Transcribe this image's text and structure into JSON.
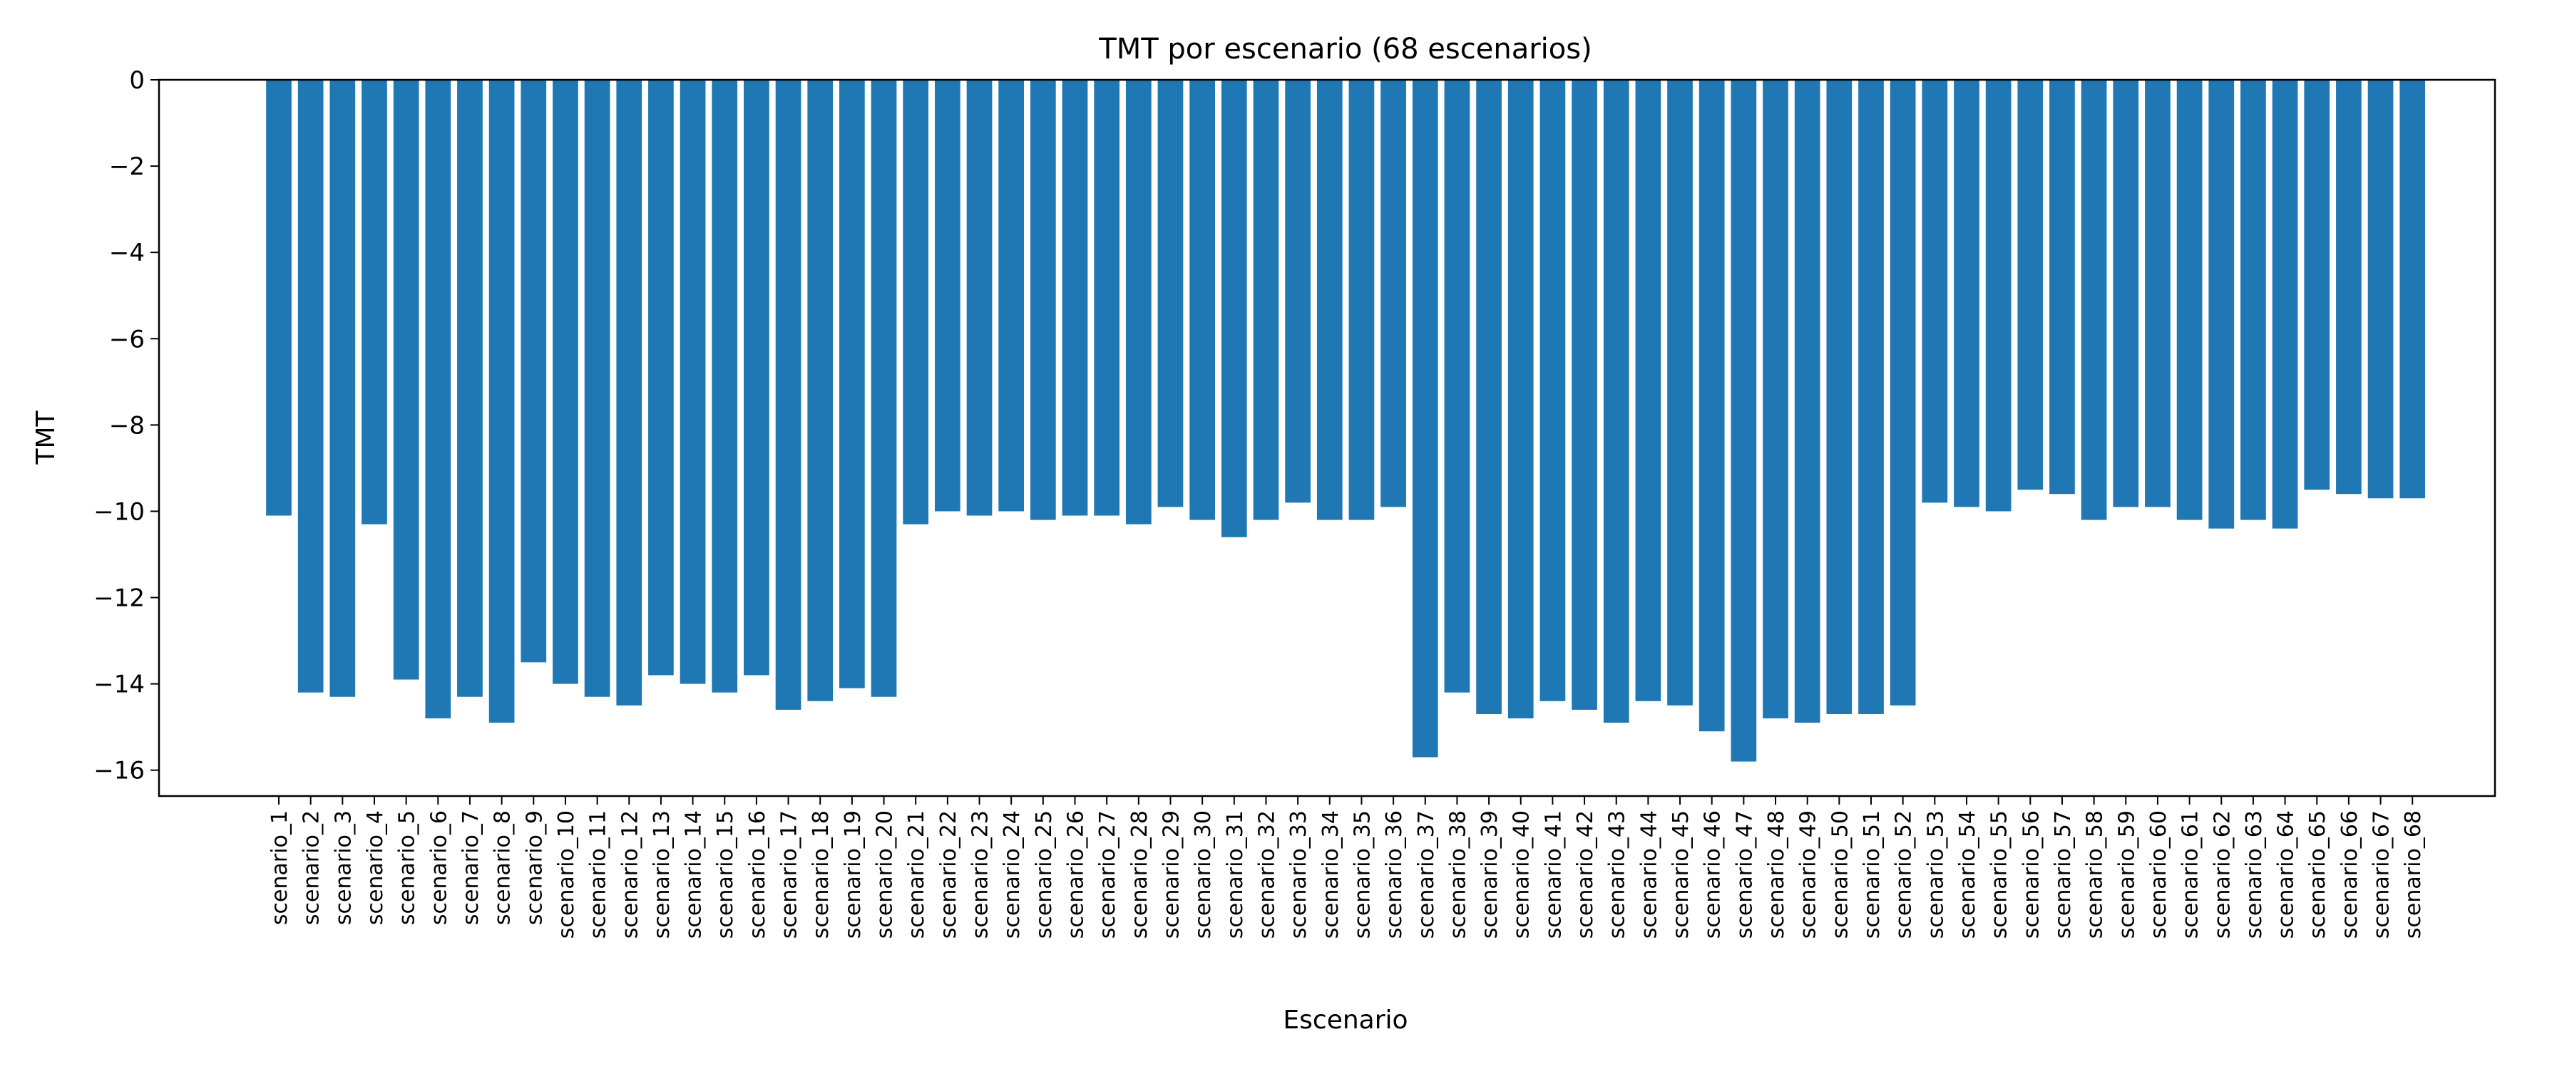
{
  "chart_data": {
    "type": "bar",
    "title": "TMT por escenario (68 escenarios)",
    "xlabel": "Escenario",
    "ylabel": "TMT",
    "ylim": [
      -16.6,
      0
    ],
    "yticks": [
      0,
      -2,
      -4,
      -6,
      -8,
      -10,
      -12,
      -14,
      -16
    ],
    "ytick_labels": [
      "0",
      "−2",
      "−4",
      "−6",
      "−8",
      "−10",
      "−12",
      "−14",
      "−16"
    ],
    "grid": false,
    "bar_color": "#1f77b4",
    "categories": [
      "scenario_1",
      "scenario_2",
      "scenario_3",
      "scenario_4",
      "scenario_5",
      "scenario_6",
      "scenario_7",
      "scenario_8",
      "scenario_9",
      "scenario_10",
      "scenario_11",
      "scenario_12",
      "scenario_13",
      "scenario_14",
      "scenario_15",
      "scenario_16",
      "scenario_17",
      "scenario_18",
      "scenario_19",
      "scenario_20",
      "scenario_21",
      "scenario_22",
      "scenario_23",
      "scenario_24",
      "scenario_25",
      "scenario_26",
      "scenario_27",
      "scenario_28",
      "scenario_29",
      "scenario_30",
      "scenario_31",
      "scenario_32",
      "scenario_33",
      "scenario_34",
      "scenario_35",
      "scenario_36",
      "scenario_37",
      "scenario_38",
      "scenario_39",
      "scenario_40",
      "scenario_41",
      "scenario_42",
      "scenario_43",
      "scenario_44",
      "scenario_45",
      "scenario_46",
      "scenario_47",
      "scenario_48",
      "scenario_49",
      "scenario_50",
      "scenario_51",
      "scenario_52",
      "scenario_53",
      "scenario_54",
      "scenario_55",
      "scenario_56",
      "scenario_57",
      "scenario_58",
      "scenario_59",
      "scenario_60",
      "scenario_61",
      "scenario_62",
      "scenario_63",
      "scenario_64",
      "scenario_65",
      "scenario_66",
      "scenario_67",
      "scenario_68"
    ],
    "values": [
      -10.1,
      -14.2,
      -14.3,
      -10.3,
      -13.9,
      -14.8,
      -14.3,
      -14.9,
      -13.5,
      -14.0,
      -14.3,
      -14.5,
      -13.8,
      -14.0,
      -14.2,
      -13.8,
      -14.6,
      -14.4,
      -14.1,
      -14.3,
      -10.3,
      -10.0,
      -10.1,
      -10.0,
      -10.2,
      -10.1,
      -10.1,
      -10.3,
      -9.9,
      -10.2,
      -10.6,
      -10.2,
      -9.8,
      -10.2,
      -10.2,
      -9.9,
      -15.7,
      -14.2,
      -14.7,
      -14.8,
      -14.4,
      -14.6,
      -14.9,
      -14.4,
      -14.5,
      -15.1,
      -15.8,
      -14.8,
      -14.9,
      -14.7,
      -14.7,
      -14.5,
      -9.8,
      -9.9,
      -10.0,
      -9.5,
      -9.6,
      -10.2,
      -9.9,
      -9.9,
      -10.2,
      -10.4,
      -10.2,
      -10.4,
      -9.5,
      -9.6,
      -9.7,
      -9.7
    ]
  }
}
